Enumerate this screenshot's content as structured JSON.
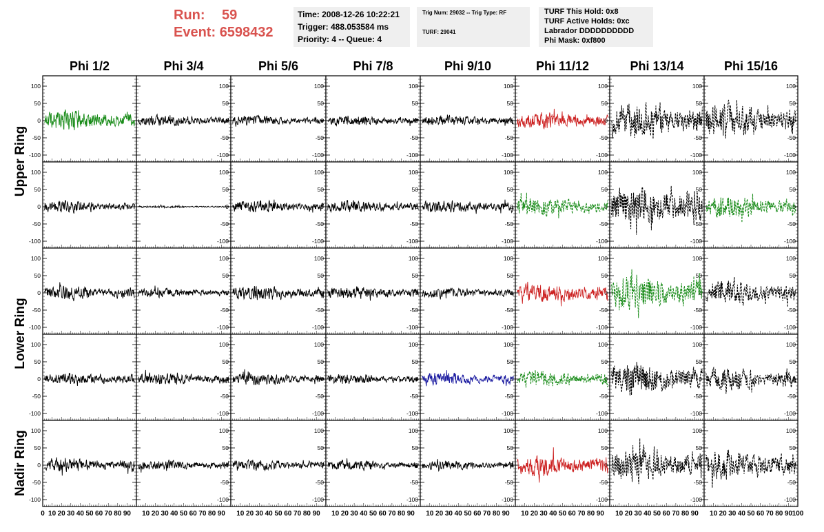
{
  "header": {
    "run_label": "Run:",
    "run_value": "59",
    "event_label": "Event:",
    "event_value": "6598432",
    "run_color": "#d9534f"
  },
  "info_box_1": {
    "time": "Time: 2008-12-26 10:22:21",
    "trigger": "Trigger: 488.053584 ms",
    "priority": "Priority: 4 -- Queue: 4"
  },
  "info_box_2": {
    "trig": "Trig Num: 29032 -- Trig Type: RF",
    "turf": "TURF: 29041"
  },
  "info_box_3": {
    "hold": "TURF This Hold: 0x8",
    "active": "TURF Active Holds: 0xc",
    "labrador": "Labrador DDDDDDDDDD",
    "phimask": "Phi Mask: 0xf800"
  },
  "chart_data": {
    "type": "line",
    "columns": [
      "Phi 1/2",
      "Phi 3/4",
      "Phi 5/6",
      "Phi 7/8",
      "Phi 9/10",
      "Phi 11/12",
      "Phi 13/14",
      "Phi 15/16"
    ],
    "row_labels": [
      {
        "text": "Upper Ring",
        "rows": [
          0,
          1
        ]
      },
      {
        "text": "Lower Ring",
        "rows": [
          2,
          3
        ]
      },
      {
        "text": "Nadir Ring",
        "rows": [
          4,
          4
        ]
      }
    ],
    "xlim": [
      0,
      100
    ],
    "ylim": [
      -120,
      130
    ],
    "y_ticks": [
      -100,
      -50,
      0,
      50,
      100
    ],
    "x_tick_labels": [
      "0",
      "10",
      "20",
      "30",
      "40",
      "50",
      "60",
      "70",
      "80",
      "90",
      "100"
    ],
    "colors": {
      "black": "#000000",
      "green": "#1a8c1a",
      "red": "#cc2020",
      "blue": "#1a1aa0"
    },
    "panels": [
      [
        {
          "color": "green",
          "style": "solid",
          "amp": 28
        },
        {
          "color": "black",
          "style": "solid",
          "amp": 14
        },
        {
          "color": "black",
          "style": "solid",
          "amp": 14
        },
        {
          "color": "black",
          "style": "solid",
          "amp": 14
        },
        {
          "color": "black",
          "style": "solid",
          "amp": 14
        },
        {
          "color": "red",
          "style": "solid",
          "amp": 22
        },
        {
          "color": "black",
          "style": "dashed",
          "amp": 48
        },
        {
          "color": "black",
          "style": "dashed",
          "amp": 45
        }
      ],
      [
        {
          "color": "black",
          "style": "solid",
          "amp": 16
        },
        {
          "color": "black",
          "style": "solid",
          "amp": 3
        },
        {
          "color": "black",
          "style": "solid",
          "amp": 17
        },
        {
          "color": "black",
          "style": "solid",
          "amp": 17
        },
        {
          "color": "black",
          "style": "solid",
          "amp": 17
        },
        {
          "color": "green",
          "style": "dashed",
          "amp": 25
        },
        {
          "color": "black",
          "style": "dashed",
          "amp": 55
        },
        {
          "color": "green",
          "style": "dashed",
          "amp": 30
        }
      ],
      [
        {
          "color": "black",
          "style": "solid",
          "amp": 18
        },
        {
          "color": "black",
          "style": "solid",
          "amp": 12
        },
        {
          "color": "black",
          "style": "solid",
          "amp": 20
        },
        {
          "color": "black",
          "style": "solid",
          "amp": 18
        },
        {
          "color": "black",
          "style": "solid",
          "amp": 14
        },
        {
          "color": "red",
          "style": "solid",
          "amp": 25
        },
        {
          "color": "green",
          "style": "dashed",
          "amp": 48
        },
        {
          "color": "black",
          "style": "dashed",
          "amp": 32
        }
      ],
      [
        {
          "color": "black",
          "style": "solid",
          "amp": 15
        },
        {
          "color": "black",
          "style": "solid",
          "amp": 16
        },
        {
          "color": "black",
          "style": "solid",
          "amp": 16
        },
        {
          "color": "black",
          "style": "solid",
          "amp": 13
        },
        {
          "color": "blue",
          "style": "solid",
          "amp": 17
        },
        {
          "color": "green",
          "style": "dashed",
          "amp": 22
        },
        {
          "color": "black",
          "style": "dashed",
          "amp": 45
        },
        {
          "color": "black",
          "style": "dashed",
          "amp": 30
        }
      ],
      [
        {
          "color": "black",
          "style": "solid",
          "amp": 20
        },
        {
          "color": "black",
          "style": "solid",
          "amp": 13
        },
        {
          "color": "black",
          "style": "solid",
          "amp": 14
        },
        {
          "color": "black",
          "style": "solid",
          "amp": 14
        },
        {
          "color": "black",
          "style": "solid",
          "amp": 13
        },
        {
          "color": "red",
          "style": "solid",
          "amp": 30
        },
        {
          "color": "black",
          "style": "dashed",
          "amp": 45
        },
        {
          "color": "black",
          "style": "dashed",
          "amp": 40
        }
      ]
    ]
  }
}
